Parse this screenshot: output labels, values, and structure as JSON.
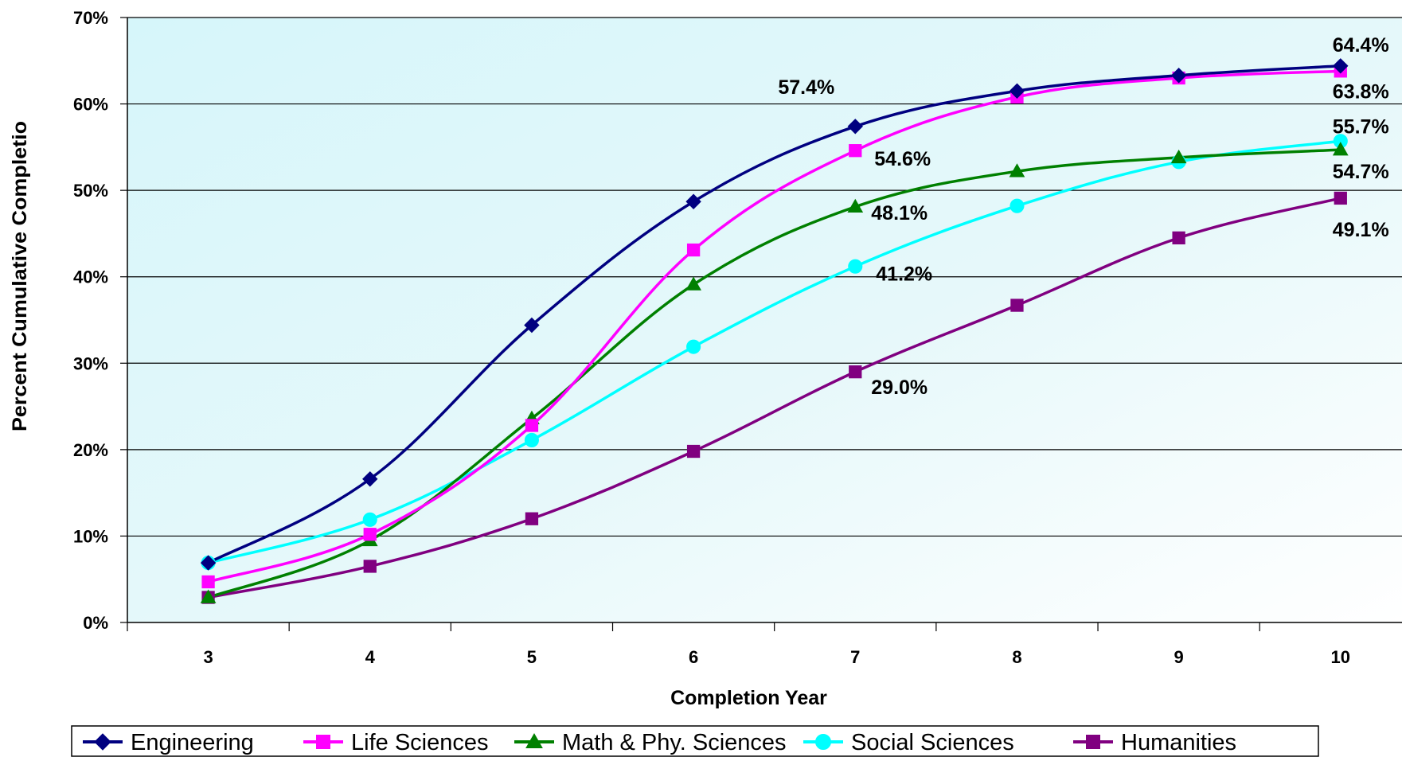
{
  "chart_data": {
    "type": "line",
    "xlabel": "Completion Year",
    "ylabel": "Percent Cumulative Completio",
    "x": [
      3,
      4,
      5,
      6,
      7,
      8,
      9,
      10
    ],
    "x_tick_labels": [
      "3",
      "4",
      "5",
      "6",
      "7",
      "8",
      "9",
      "10"
    ],
    "ylim": [
      0,
      70
    ],
    "y_tick_labels": [
      "0%",
      "10%",
      "20%",
      "30%",
      "40%",
      "50%",
      "60%",
      "70%"
    ],
    "grid": "horizontal",
    "plot_background": "gradient white-to-light-cyan",
    "legend_position": "bottom",
    "series": [
      {
        "name": "Engineering",
        "color": "#000080",
        "marker": "diamond",
        "values": [
          6.9,
          16.6,
          34.4,
          48.7,
          57.4,
          61.5,
          63.3,
          64.4
        ]
      },
      {
        "name": "Life Sciences",
        "color": "#FF00FF",
        "marker": "square",
        "values": [
          4.7,
          10.2,
          22.8,
          43.1,
          54.6,
          60.8,
          63.0,
          63.8
        ]
      },
      {
        "name": "Math & Phy. Sciences",
        "color": "#008000",
        "marker": "triangle",
        "values": [
          2.9,
          9.5,
          23.6,
          39.1,
          48.1,
          52.2,
          53.8,
          54.7
        ]
      },
      {
        "name": "Social Sciences",
        "color": "#00FFFF",
        "marker": "circle",
        "values": [
          6.9,
          11.9,
          21.1,
          31.9,
          41.2,
          48.2,
          53.3,
          55.7
        ]
      },
      {
        "name": "Humanities",
        "color": "#800080",
        "marker": "square",
        "values": [
          2.9,
          6.5,
          12.0,
          19.8,
          29.0,
          36.7,
          44.5,
          49.1
        ]
      }
    ],
    "data_labels": [
      {
        "text": "57.4%",
        "series": "Engineering",
        "x": 7
      },
      {
        "text": "54.6%",
        "series": "Life Sciences",
        "x": 7
      },
      {
        "text": "48.1%",
        "series": "Math & Phy. Sciences",
        "x": 7
      },
      {
        "text": "41.2%",
        "series": "Social Sciences",
        "x": 7
      },
      {
        "text": "29.0%",
        "series": "Humanities",
        "x": 7
      },
      {
        "text": "64.4%",
        "series": "Engineering",
        "x": 10
      },
      {
        "text": "63.8%",
        "series": "Life Sciences",
        "x": 10
      },
      {
        "text": "55.7%",
        "series": "Social Sciences",
        "x": 10
      },
      {
        "text": "54.7%",
        "series": "Math & Phy. Sciences",
        "x": 10
      },
      {
        "text": "49.1%",
        "series": "Humanities",
        "x": 10
      }
    ]
  }
}
